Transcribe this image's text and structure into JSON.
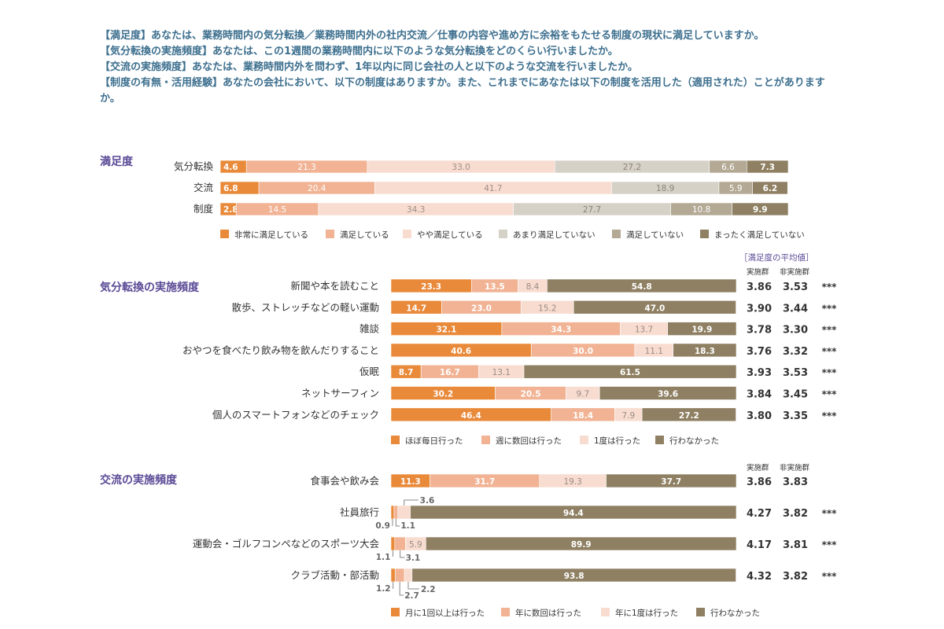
{
  "intro": [
    "【満足度】あなたは、業務時間内の気分転換／業務時間内外の社内交流／仕事の内容や進め方に余裕をもたせる制度の現状に満足していますか。",
    "【気分転換の実施頻度】あなたは、この1週間の業務時間内に以下のような気分転換をどのくらい行いましたか。",
    "【交流の実施頻度】あなたは、業務時間内外を問わず、1年以内に同じ会社の人と以下のような交流を行いましたか。",
    "【制度の有無・活用経験】あなたの会社において、以下の制度はありますか。また、これまでにあなたは以下の制度を活用した（適用された）ことがありますか。"
  ],
  "colors": {
    "orange": "#e98a3b",
    "salmon": "#f1b394",
    "peach": "#f8dcd0",
    "gray": "#d6d1c7",
    "taupe": "#b3a994",
    "brown": "#8f8063",
    "title": "#5b4a96",
    "intro": "#3d6f8e"
  },
  "chart_data": [
    {
      "type": "bar",
      "orientation": "horizontal",
      "stacked": true,
      "title": "満足度",
      "categories": [
        "気分転換",
        "交流",
        "制度"
      ],
      "series": [
        {
          "name": "非常に満足している",
          "values": [
            4.6,
            6.8,
            2.8
          ]
        },
        {
          "name": "満足している",
          "values": [
            21.3,
            20.4,
            14.5
          ]
        },
        {
          "name": "やや満足している",
          "values": [
            33.0,
            41.7,
            34.3
          ]
        },
        {
          "name": "あまり満足していない",
          "values": [
            27.2,
            18.9,
            27.7
          ]
        },
        {
          "name": "満足していない",
          "values": [
            6.6,
            5.9,
            10.8
          ]
        },
        {
          "name": "まったく満足していない",
          "values": [
            7.3,
            6.2,
            9.9
          ]
        }
      ]
    },
    {
      "type": "bar",
      "orientation": "horizontal",
      "stacked": true,
      "title": "気分転換の実施頻度",
      "avg_header": "［満足度の平均値］",
      "col_headers": [
        "実施群",
        "非実施群"
      ],
      "categories": [
        "新聞や本を読むこと",
        "散歩、ストレッチなどの軽い運動",
        "雑談",
        "おやつを食べたり飲み物を飲んだりすること",
        "仮眠",
        "ネットサーフィン",
        "個人のスマートフォンなどのチェック"
      ],
      "series": [
        {
          "name": "ほぼ毎日行った",
          "values": [
            23.3,
            14.7,
            32.1,
            40.6,
            8.7,
            30.2,
            46.4
          ]
        },
        {
          "name": "週に数回は行った",
          "values": [
            13.5,
            23.0,
            34.3,
            30.0,
            16.7,
            20.5,
            18.4
          ]
        },
        {
          "name": "1度は行った",
          "values": [
            8.4,
            15.2,
            13.7,
            11.1,
            13.1,
            9.7,
            7.9
          ]
        },
        {
          "name": "行わなかった",
          "values": [
            54.8,
            47.0,
            19.9,
            18.3,
            61.5,
            39.6,
            27.2
          ]
        }
      ],
      "averages": [
        {
          "implemented": "3.86",
          "not_implemented": "3.53",
          "sig": "***"
        },
        {
          "implemented": "3.90",
          "not_implemented": "3.44",
          "sig": "***"
        },
        {
          "implemented": "3.78",
          "not_implemented": "3.30",
          "sig": "***"
        },
        {
          "implemented": "3.76",
          "not_implemented": "3.32",
          "sig": "***"
        },
        {
          "implemented": "3.93",
          "not_implemented": "3.53",
          "sig": "***"
        },
        {
          "implemented": "3.84",
          "not_implemented": "3.45",
          "sig": "***"
        },
        {
          "implemented": "3.80",
          "not_implemented": "3.35",
          "sig": "***"
        }
      ]
    },
    {
      "type": "bar",
      "orientation": "horizontal",
      "stacked": true,
      "title": "交流の実施頻度",
      "col_headers": [
        "実施群",
        "非実施群"
      ],
      "categories": [
        "食事会や飲み会",
        "社員旅行",
        "運動会・ゴルフコンペなどのスポーツ大会",
        "クラブ活動・部活動"
      ],
      "series": [
        {
          "name": "月に1回以上は行った",
          "values": [
            11.3,
            0.9,
            1.1,
            1.2
          ]
        },
        {
          "name": "年に数回は行った",
          "values": [
            31.7,
            1.1,
            3.1,
            2.7
          ]
        },
        {
          "name": "年に1度は行った",
          "values": [
            19.3,
            3.6,
            5.9,
            2.2
          ]
        },
        {
          "name": "行わなかった",
          "values": [
            37.7,
            94.4,
            89.9,
            93.8
          ]
        }
      ],
      "averages": [
        {
          "implemented": "3.86",
          "not_implemented": "3.83",
          "sig": ""
        },
        {
          "implemented": "4.27",
          "not_implemented": "3.82",
          "sig": "***"
        },
        {
          "implemented": "4.17",
          "not_implemented": "3.81",
          "sig": "***"
        },
        {
          "implemented": "4.32",
          "not_implemented": "3.82",
          "sig": "***"
        }
      ]
    }
  ]
}
